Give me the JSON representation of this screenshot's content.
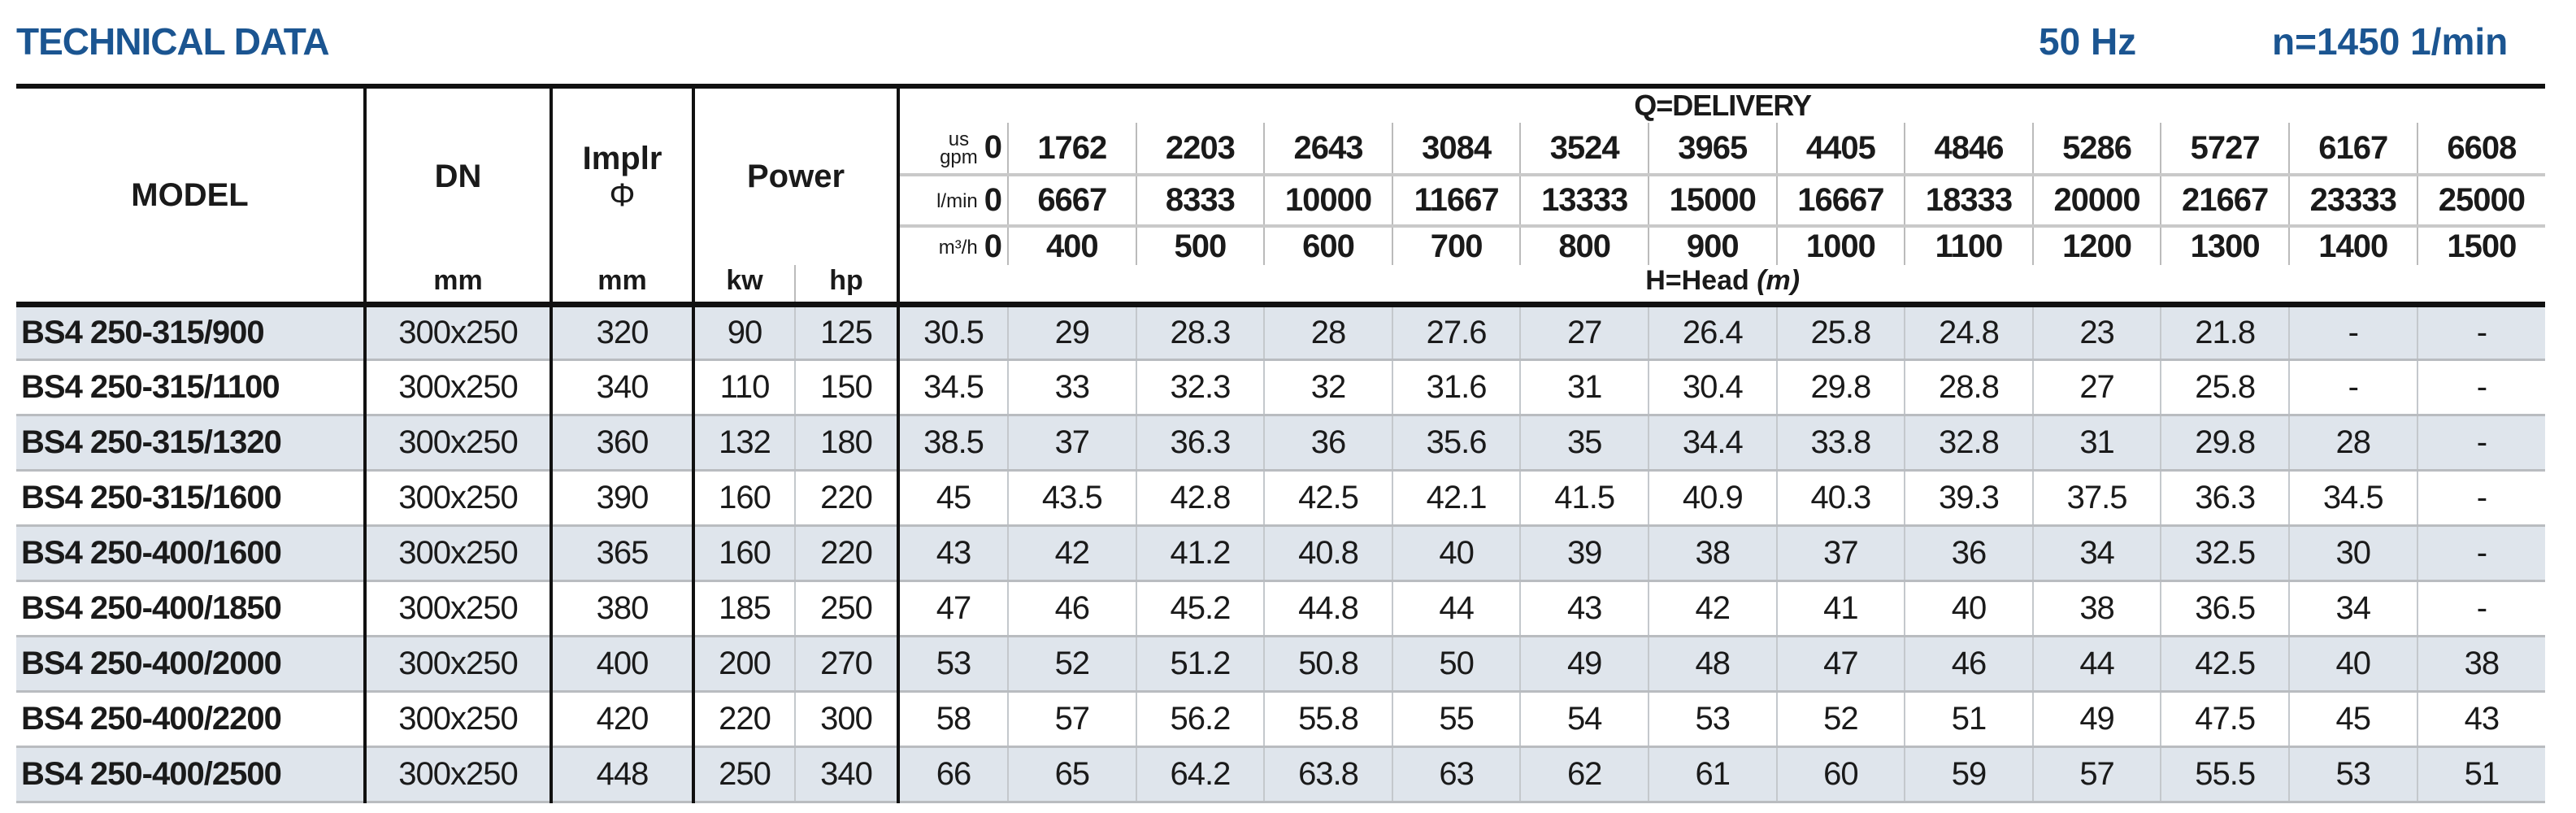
{
  "header": {
    "title": "TECHNICAL DATA",
    "frequency": "50 Hz",
    "speed": "n=1450 1/min"
  },
  "table": {
    "col_model": "MODEL",
    "col_dn": "DN",
    "col_dn_unit": "mm",
    "col_impeller": "Implr",
    "col_impeller_symbol": "Φ",
    "col_impeller_unit": "mm",
    "col_power": "Power",
    "col_power_kw": "kw",
    "col_power_hp": "hp",
    "delivery_label": "Q=DELIVERY",
    "head_label": "H=Head",
    "head_unit": "(m)",
    "flow_rows": [
      {
        "unit_top": "us",
        "unit": "gpm",
        "values": [
          "0",
          "1762",
          "2203",
          "2643",
          "3084",
          "3524",
          "3965",
          "4405",
          "4846",
          "5286",
          "5727",
          "6167",
          "6608"
        ]
      },
      {
        "unit_top": "",
        "unit": "l/min",
        "values": [
          "0",
          "6667",
          "8333",
          "10000",
          "11667",
          "13333",
          "15000",
          "16667",
          "18333",
          "20000",
          "21667",
          "23333",
          "25000"
        ]
      },
      {
        "unit_top": "",
        "unit": "m³/h",
        "values": [
          "0",
          "400",
          "500",
          "600",
          "700",
          "800",
          "900",
          "1000",
          "1100",
          "1200",
          "1300",
          "1400",
          "1500"
        ]
      }
    ],
    "rows": [
      {
        "model": "BS4 250-315/900",
        "dn": "300x250",
        "impeller": "320",
        "kw": "90",
        "hp": "125",
        "head": [
          "30.5",
          "29",
          "28.3",
          "28",
          "27.6",
          "27",
          "26.4",
          "25.8",
          "24.8",
          "23",
          "21.8",
          "-",
          "-"
        ]
      },
      {
        "model": "BS4 250-315/1100",
        "dn": "300x250",
        "impeller": "340",
        "kw": "110",
        "hp": "150",
        "head": [
          "34.5",
          "33",
          "32.3",
          "32",
          "31.6",
          "31",
          "30.4",
          "29.8",
          "28.8",
          "27",
          "25.8",
          "-",
          "-"
        ]
      },
      {
        "model": "BS4 250-315/1320",
        "dn": "300x250",
        "impeller": "360",
        "kw": "132",
        "hp": "180",
        "head": [
          "38.5",
          "37",
          "36.3",
          "36",
          "35.6",
          "35",
          "34.4",
          "33.8",
          "32.8",
          "31",
          "29.8",
          "28",
          "-"
        ]
      },
      {
        "model": "BS4 250-315/1600",
        "dn": "300x250",
        "impeller": "390",
        "kw": "160",
        "hp": "220",
        "head": [
          "45",
          "43.5",
          "42.8",
          "42.5",
          "42.1",
          "41.5",
          "40.9",
          "40.3",
          "39.3",
          "37.5",
          "36.3",
          "34.5",
          "-"
        ]
      },
      {
        "model": "BS4 250-400/1600",
        "dn": "300x250",
        "impeller": "365",
        "kw": "160",
        "hp": "220",
        "head": [
          "43",
          "42",
          "41.2",
          "40.8",
          "40",
          "39",
          "38",
          "37",
          "36",
          "34",
          "32.5",
          "30",
          "-"
        ]
      },
      {
        "model": "BS4 250-400/1850",
        "dn": "300x250",
        "impeller": "380",
        "kw": "185",
        "hp": "250",
        "head": [
          "47",
          "46",
          "45.2",
          "44.8",
          "44",
          "43",
          "42",
          "41",
          "40",
          "38",
          "36.5",
          "34",
          "-"
        ]
      },
      {
        "model": "BS4 250-400/2000",
        "dn": "300x250",
        "impeller": "400",
        "kw": "200",
        "hp": "270",
        "head": [
          "53",
          "52",
          "51.2",
          "50.8",
          "50",
          "49",
          "48",
          "47",
          "46",
          "44",
          "42.5",
          "40",
          "38"
        ]
      },
      {
        "model": "BS4 250-400/2200",
        "dn": "300x250",
        "impeller": "420",
        "kw": "220",
        "hp": "300",
        "head": [
          "58",
          "57",
          "56.2",
          "55.8",
          "55",
          "54",
          "53",
          "52",
          "51",
          "49",
          "47.5",
          "45",
          "43"
        ]
      },
      {
        "model": "BS4 250-400/2500",
        "dn": "300x250",
        "impeller": "448",
        "kw": "250",
        "hp": "340",
        "head": [
          "66",
          "65",
          "64.2",
          "63.8",
          "63",
          "62",
          "61",
          "60",
          "59",
          "57",
          "55.5",
          "53",
          "51"
        ]
      }
    ]
  },
  "colors": {
    "title": "#1b5591",
    "row_alt": "#dfe5ec",
    "rule": "#111111"
  }
}
